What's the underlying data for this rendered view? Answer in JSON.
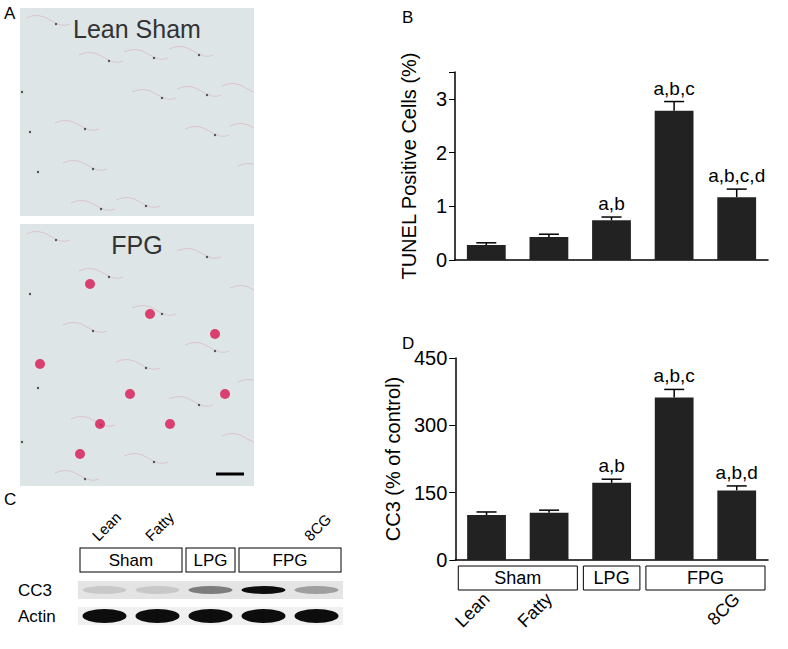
{
  "panels": {
    "A": {
      "letter": "A",
      "images": [
        "Lean Sham",
        "FPG"
      ]
    },
    "C": {
      "letter": "C",
      "lanes": [
        "Lean",
        "Fatty",
        null,
        null,
        "8CG"
      ],
      "groups": [
        "Sham",
        "Sham",
        "LPG",
        "FPG",
        "FPG"
      ],
      "rows": [
        "CC3",
        "Actin"
      ]
    }
  },
  "chart_data": [
    {
      "type": "bar",
      "title": "B",
      "y_label": "TUNEL Positive Cells (%)",
      "categories": [
        null,
        null,
        null,
        null,
        null
      ],
      "values": [
        0.28,
        0.43,
        0.74,
        2.78,
        1.17
      ],
      "errors": [
        0.04,
        0.05,
        0.06,
        0.17,
        0.15
      ],
      "annotations": [
        null,
        null,
        "a,b",
        "a,b,c",
        "a,b,c,d"
      ],
      "color": "#222222",
      "ylim": [
        0,
        3.5
      ],
      "yticks": [
        0,
        1,
        2,
        3
      ],
      "grid": false,
      "tick_labels": "y"
    },
    {
      "type": "bar",
      "title": "D",
      "y_label": "CC3 (% of control)",
      "categories": [
        "Lean",
        "Fatty",
        null,
        null,
        "8CG"
      ],
      "groups": [
        "Sham",
        "Sham",
        "LPG",
        "FPG",
        "FPG"
      ],
      "values": [
        100,
        105,
        172,
        362,
        155
      ],
      "errors": [
        7,
        6,
        8,
        18,
        10
      ],
      "annotations": [
        null,
        null,
        "a,b",
        "a,b,c",
        "a,b,d"
      ],
      "color": "#222222",
      "ylim": [
        0,
        450
      ],
      "yticks": [
        0,
        150,
        300,
        450
      ],
      "grid": false
    }
  ]
}
